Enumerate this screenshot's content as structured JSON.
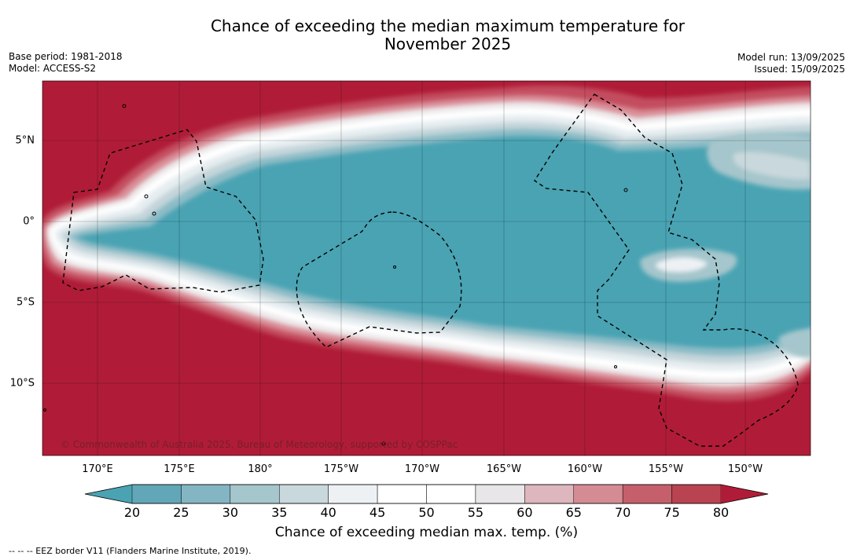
{
  "title_line1": "Chance of exceeding the median maximum temperature for",
  "title_line2": "November 2025",
  "base_period": "Base period: 1981-2018",
  "model": "Model: ACCESS-S2",
  "model_run": "Model run: 13/09/2025",
  "issued": "Issued: 15/09/2025",
  "lon_labels": [
    "170°E",
    "175°E",
    "180°",
    "175°W",
    "170°W",
    "165°W",
    "160°W",
    "155°W",
    "150°W"
  ],
  "lat_labels": [
    "5°N",
    "0°",
    "5°S",
    "10°S"
  ],
  "copyright": "© Commonwealth of Australia 2025, Bureau of Meteorology, supported by COSPPac",
  "colorbar": {
    "ticks": [
      "20",
      "25",
      "30",
      "35",
      "40",
      "45",
      "50",
      "55",
      "60",
      "65",
      "70",
      "75",
      "80"
    ],
    "colors": [
      "#62a7b7",
      "#84b5c3",
      "#a5c6cc",
      "#c9d8dc",
      "#edf1f4",
      "#ffffff",
      "#ffffff",
      "#e8e6e8",
      "#deb6bd",
      "#d58b93",
      "#c65f6c",
      "#b94350"
    ],
    "low_color": "#4aa3b3",
    "high_color": "#b01c37",
    "label": "Chance of exceeding median max. temp. (%)"
  },
  "footnote": "--  --  -- EEZ border V11 (Flanders Marine Institute, 2019)."
}
